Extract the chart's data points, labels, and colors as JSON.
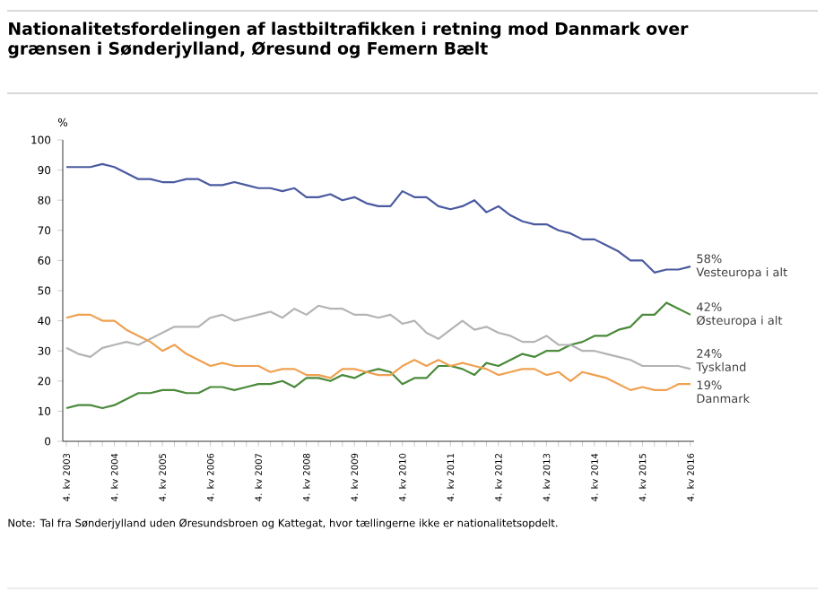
{
  "chart_data": {
    "type": "line",
    "title": "Nationalitetsfordelingen af lastbiltrafikken i retning mod Danmark over grænsen i Sønderjylland, Øresund og Femern Bælt",
    "ylabel": "%",
    "categories": [
      "4. kv 2003",
      null,
      null,
      null,
      "4. kv 2004",
      null,
      null,
      null,
      "4. kv 2005",
      null,
      null,
      null,
      "4. kv 2006",
      null,
      null,
      null,
      "4. kv 2007",
      null,
      null,
      null,
      "4. kv 2008",
      null,
      null,
      null,
      "4. kv 2009",
      null,
      null,
      null,
      "4. kv 2010",
      null,
      null,
      null,
      "4. kv 2011",
      null,
      null,
      null,
      "4. kv 2012",
      null,
      null,
      null,
      "4. kv 2013",
      null,
      null,
      null,
      "4. kv 2014",
      null,
      null,
      null,
      "4. kv 2015",
      null,
      null,
      null,
      "4. kv 2016"
    ],
    "series": [
      {
        "name": "Vesteuropa i alt",
        "color": "#4a5aa0",
        "values": [
          91,
          91,
          91,
          92,
          91,
          89,
          87,
          87,
          86,
          86,
          87,
          87,
          85,
          85,
          86,
          85,
          84,
          84,
          83,
          84,
          81,
          81,
          82,
          80,
          81,
          79,
          78,
          78,
          83,
          81,
          81,
          78,
          77,
          78,
          80,
          76,
          78,
          75,
          73,
          72,
          72,
          70,
          69,
          67,
          67,
          65,
          63,
          60,
          60,
          56,
          57,
          57,
          58
        ],
        "value_labels": [
          null,
          null,
          null,
          null,
          null,
          null,
          null,
          null,
          null,
          null,
          null,
          null,
          null,
          null,
          null,
          null,
          null,
          null,
          null,
          null,
          null,
          null,
          null,
          null,
          null,
          null,
          null,
          null,
          null,
          null,
          null,
          null,
          null,
          null,
          null,
          null,
          null,
          null,
          null,
          null,
          null,
          null,
          null,
          null,
          null,
          null,
          null,
          null,
          null,
          null,
          null,
          null,
          "58%"
        ]
      },
      {
        "name": "Østeuropa i alt",
        "color": "#4a8a3a",
        "values": [
          11,
          12,
          12,
          11,
          12,
          14,
          16,
          16,
          17,
          17,
          16,
          16,
          18,
          18,
          17,
          18,
          19,
          19,
          20,
          18,
          21,
          21,
          20,
          22,
          21,
          23,
          24,
          23,
          19,
          21,
          21,
          25,
          25,
          24,
          22,
          26,
          25,
          27,
          29,
          28,
          30,
          30,
          32,
          33,
          35,
          35,
          37,
          38,
          42,
          42,
          46,
          44,
          42
        ],
        "value_labels": [
          null,
          null,
          null,
          null,
          null,
          null,
          null,
          null,
          null,
          null,
          null,
          null,
          null,
          null,
          null,
          null,
          null,
          null,
          null,
          null,
          null,
          null,
          null,
          null,
          null,
          null,
          null,
          null,
          null,
          null,
          null,
          null,
          null,
          null,
          null,
          null,
          null,
          null,
          null,
          null,
          null,
          null,
          null,
          null,
          null,
          null,
          null,
          null,
          null,
          null,
          null,
          null,
          "42%"
        ]
      },
      {
        "name": "Tyskland",
        "color": "#b4b4b4",
        "values": [
          31,
          29,
          28,
          31,
          32,
          33,
          32,
          34,
          36,
          38,
          38,
          38,
          41,
          42,
          40,
          41,
          42,
          43,
          41,
          44,
          42,
          45,
          44,
          44,
          42,
          42,
          41,
          42,
          39,
          40,
          36,
          34,
          37,
          40,
          37,
          38,
          36,
          35,
          33,
          33,
          35,
          32,
          32,
          30,
          30,
          29,
          28,
          27,
          25,
          25,
          25,
          25,
          24
        ],
        "value_labels": [
          null,
          null,
          null,
          null,
          null,
          null,
          null,
          null,
          null,
          null,
          null,
          null,
          null,
          null,
          null,
          null,
          null,
          null,
          null,
          null,
          null,
          null,
          null,
          null,
          null,
          null,
          null,
          null,
          null,
          null,
          null,
          null,
          null,
          null,
          null,
          null,
          null,
          null,
          null,
          null,
          null,
          null,
          null,
          null,
          null,
          null,
          null,
          null,
          null,
          null,
          null,
          null,
          "24%"
        ]
      },
      {
        "name": "Danmark",
        "color": "#f0a050",
        "values": [
          41,
          42,
          42,
          40,
          40,
          37,
          35,
          33,
          30,
          32,
          29,
          27,
          25,
          26,
          25,
          25,
          25,
          23,
          24,
          24,
          22,
          22,
          21,
          24,
          24,
          23,
          22,
          22,
          25,
          27,
          25,
          27,
          25,
          26,
          25,
          24,
          22,
          23,
          24,
          24,
          22,
          23,
          20,
          23,
          22,
          21,
          19,
          17,
          18,
          17,
          17,
          19,
          19
        ],
        "value_labels": [
          null,
          null,
          null,
          null,
          null,
          null,
          null,
          null,
          null,
          null,
          null,
          null,
          null,
          null,
          null,
          null,
          null,
          null,
          null,
          null,
          null,
          null,
          null,
          null,
          null,
          null,
          null,
          null,
          null,
          null,
          null,
          null,
          null,
          null,
          null,
          null,
          null,
          null,
          null,
          null,
          null,
          null,
          null,
          null,
          null,
          null,
          null,
          null,
          null,
          null,
          null,
          null,
          "19%"
        ]
      }
    ],
    "ylim": [
      0,
      100
    ],
    "yticks": [
      0,
      10,
      20,
      30,
      40,
      50,
      60,
      70,
      80,
      90,
      100
    ],
    "grid": false,
    "marker": "none",
    "line_style": "solid",
    "annotations": [
      "Note: Tal fra Sønderjylland uden Øresundsbroen og Kattegat, hvor tællingerne ikke er nationalitetsopdelt."
    ]
  }
}
